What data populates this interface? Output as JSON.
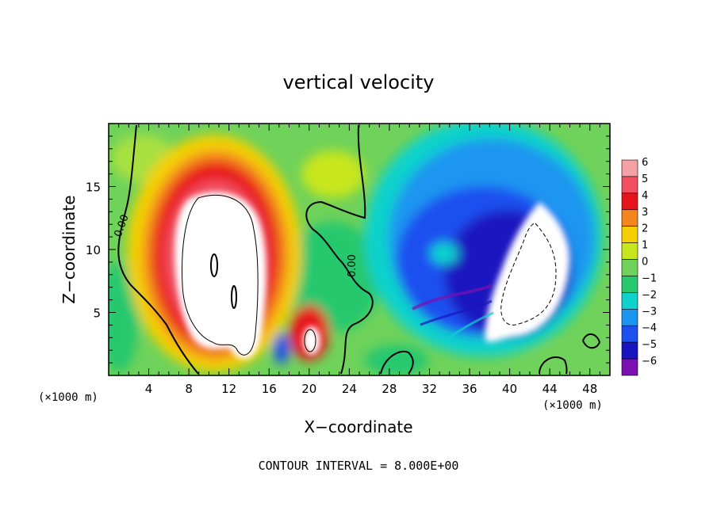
{
  "chart_data": {
    "type": "heatmap",
    "title": "vertical velocity",
    "xlabel": "X−coordinate",
    "ylabel": "Z−coordinate",
    "x_unit_left": "(×1000 m)",
    "x_unit_right": "(×1000 m)",
    "footer": "CONTOUR INTERVAL = 8.000E+00",
    "xlim": [
      0,
      50
    ],
    "ylim": [
      0,
      20
    ],
    "x_ticks": [
      4,
      8,
      12,
      16,
      20,
      24,
      28,
      32,
      36,
      40,
      44,
      48
    ],
    "x_tick_labels": [
      "4",
      "8",
      "12",
      "16",
      "20",
      "24",
      "28",
      "32",
      "36",
      "40",
      "44",
      "48"
    ],
    "y_ticks": [
      5,
      10,
      15
    ],
    "y_tick_labels": [
      "5",
      "10",
      "15"
    ],
    "contour_labels": [
      "0.00",
      "0.00"
    ],
    "colorbar": {
      "levels": [
        6,
        5,
        4,
        3,
        2,
        1,
        0,
        -1,
        -2,
        -3,
        -4,
        -5,
        -6
      ],
      "labels": [
        "6",
        "5",
        "4",
        "3",
        "2",
        "1",
        "0",
        "−1",
        "−2",
        "−3",
        "−4",
        "−5",
        "−6"
      ],
      "colors": [
        "#f5a0a6",
        "#f25060",
        "#e8141c",
        "#f4861e",
        "#f4d000",
        "#c8e61e",
        "#6fd25a",
        "#28c86e",
        "#10d2cc",
        "#1a96f0",
        "#1e50f0",
        "#1a14c0",
        "#7a10b0"
      ]
    },
    "updraft_core": {
      "x_range": [
        5.5,
        16
      ],
      "z_range": [
        1,
        15.5
      ],
      "max_level": 6
    },
    "downdraft_core": {
      "x_range": [
        34,
        46
      ],
      "z_range": [
        2,
        14
      ],
      "min_level": -6
    }
  }
}
